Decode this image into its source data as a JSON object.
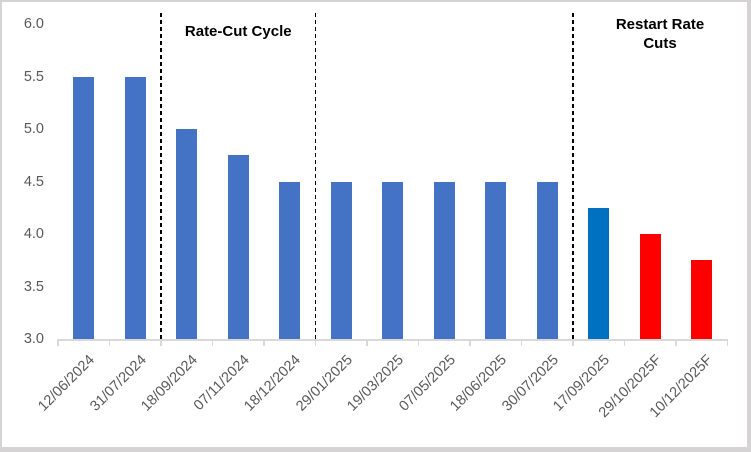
{
  "chart_data": {
    "type": "bar",
    "title": "",
    "xlabel": "",
    "ylabel": "",
    "categories": [
      "12/06/2024",
      "31/07/2024",
      "18/09/2024",
      "07/11/2024",
      "18/12/2024",
      "29/01/2025",
      "19/03/2025",
      "07/05/2025",
      "18/06/2025",
      "30/07/2025",
      "17/09/2025",
      "29/10/2025F",
      "10/12/2025F"
    ],
    "values": [
      5.5,
      5.5,
      5.0,
      4.75,
      4.5,
      4.5,
      4.5,
      4.5,
      4.5,
      4.5,
      4.25,
      4.0,
      3.75
    ],
    "bar_color_keys": [
      "default",
      "default",
      "default",
      "default",
      "default",
      "default",
      "default",
      "default",
      "default",
      "default",
      "highlight",
      "forecast",
      "forecast"
    ],
    "colors": {
      "default": "#4472C4",
      "highlight": "#0070C0",
      "forecast": "#FF0000",
      "axis": "#D9D9D9",
      "tick_label": "#595959",
      "annotation_text": "#000000",
      "frame_border": "#D6D3D4"
    },
    "ylim": [
      3.0,
      6.0
    ],
    "y_ticks": [
      "6.0",
      "5.5",
      "5.0",
      "4.5",
      "4.0",
      "3.5",
      "3.0"
    ],
    "grid": false,
    "legend": null,
    "x_label_rotation_deg": 45,
    "separators_after_category": [
      2,
      5,
      10
    ],
    "annotations": [
      {
        "text": "Rate-Cut Cycle",
        "lines": [
          "Rate-Cut Cycle"
        ],
        "from_boundary": 2,
        "to_boundary": 5
      },
      {
        "text": "Restart Rate Cuts",
        "lines": [
          "Restart Rate",
          "Cuts"
        ],
        "from_boundary": 10,
        "to_boundary": 13
      }
    ]
  }
}
